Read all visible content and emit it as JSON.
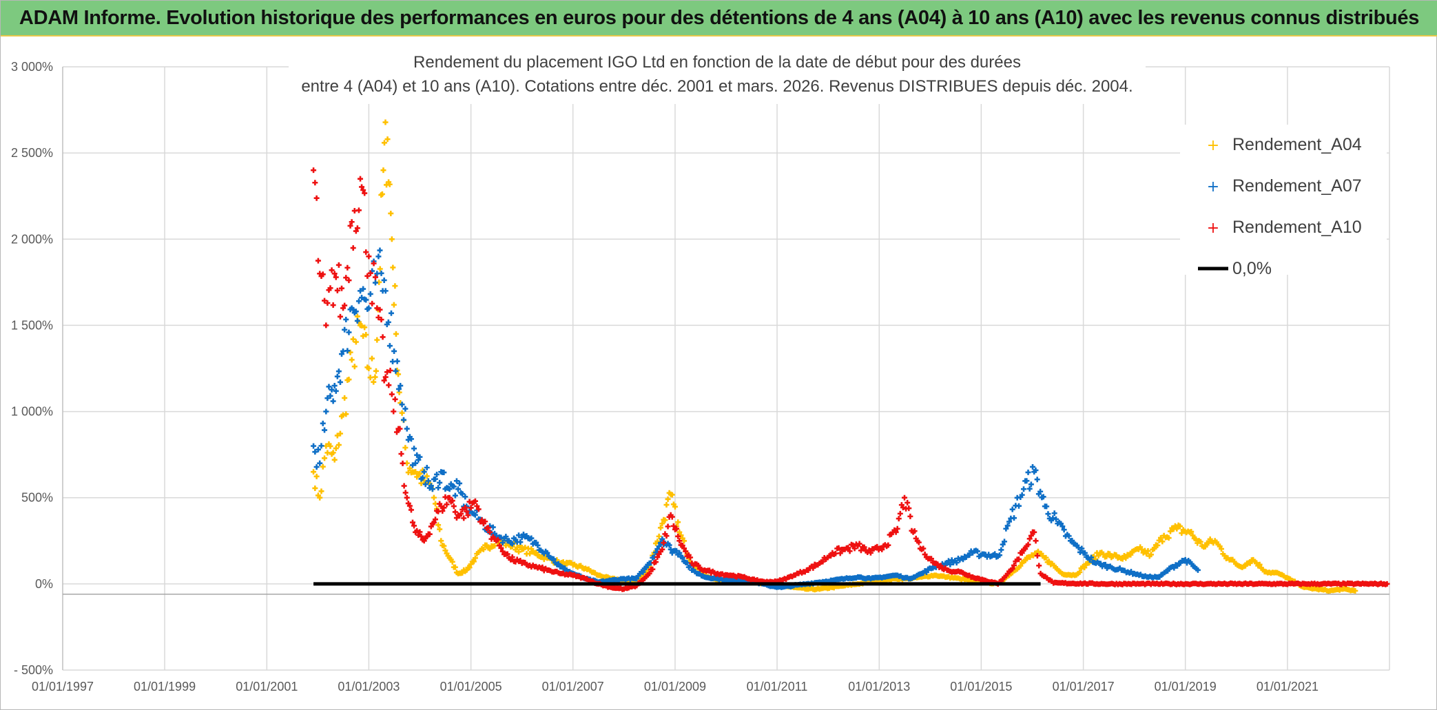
{
  "header": {
    "title": "ADAM Informe. Evolution historique des performances en euros pour des détentions de 4 ans (A04) à 10 ans (A10) avec les revenus connus distribués"
  },
  "chart_data": {
    "type": "scatter",
    "title_lines": [
      "Rendement du placement IGO Ltd  en fonction de la date de début pour des durées",
      "entre 4 (A04) et 10 ans (A10). Cotations entre déc. 2001 et mars. 2026. Revenus DISTRIBUES depuis déc. 2004."
    ],
    "xlabel": "",
    "ylabel": "",
    "x_axis": {
      "min": "1997-01-01",
      "max": "2023-01-01",
      "tick_labels": [
        "01/01/1997",
        "01/01/1999",
        "01/01/2001",
        "01/01/2003",
        "01/01/2005",
        "01/01/2007",
        "01/01/2009",
        "01/01/2011",
        "01/01/2013",
        "01/01/2015",
        "01/01/2017",
        "01/01/2019",
        "01/01/2021"
      ]
    },
    "y_axis": {
      "min": -500,
      "max": 3000,
      "unit": "%",
      "ticks": [
        -500,
        0,
        500,
        1000,
        1500,
        2000,
        2500,
        3000
      ],
      "tick_labels": [
        "- 500%",
        "0%",
        "500%",
        "1 000%",
        "1 500%",
        "2 000%",
        "2 500%",
        "3 000%"
      ]
    },
    "grid": true,
    "legend_position": "top-right",
    "series": [
      {
        "name": "Rendement_A04",
        "color": "#ffc000",
        "marker": "plus",
        "points": [
          [
            "2001-12-01",
            650
          ],
          [
            "2002-01-15",
            500
          ],
          [
            "2002-03-01",
            800
          ],
          [
            "2002-05-01",
            720
          ],
          [
            "2002-07-01",
            980
          ],
          [
            "2002-09-01",
            1300
          ],
          [
            "2002-11-01",
            1500
          ],
          [
            "2003-01-01",
            1250
          ],
          [
            "2003-02-15",
            1200
          ],
          [
            "2003-03-15",
            1750
          ],
          [
            "2003-04-15",
            2400
          ],
          [
            "2003-05-15",
            2580
          ],
          [
            "2003-06-15",
            2000
          ],
          [
            "2003-07-15",
            1450
          ],
          [
            "2003-08-15",
            1050
          ],
          [
            "2003-10-01",
            700
          ],
          [
            "2003-12-01",
            650
          ],
          [
            "2004-02-01",
            600
          ],
          [
            "2004-04-01",
            550
          ],
          [
            "2004-06-01",
            250
          ],
          [
            "2004-08-01",
            150
          ],
          [
            "2004-10-01",
            60
          ],
          [
            "2004-12-01",
            80
          ],
          [
            "2005-02-01",
            150
          ],
          [
            "2005-04-01",
            200
          ],
          [
            "2005-07-01",
            250
          ],
          [
            "2005-10-01",
            230
          ],
          [
            "2006-01-01",
            200
          ],
          [
            "2006-04-01",
            180
          ],
          [
            "2006-07-01",
            150
          ],
          [
            "2006-10-01",
            120
          ],
          [
            "2007-01-01",
            110
          ],
          [
            "2007-04-01",
            90
          ],
          [
            "2007-07-01",
            50
          ],
          [
            "2007-10-01",
            30
          ],
          [
            "2008-01-01",
            20
          ],
          [
            "2008-04-01",
            10
          ],
          [
            "2008-07-01",
            100
          ],
          [
            "2008-10-01",
            350
          ],
          [
            "2008-12-01",
            520
          ],
          [
            "2009-02-01",
            300
          ],
          [
            "2009-05-01",
            120
          ],
          [
            "2009-08-01",
            50
          ],
          [
            "2009-11-01",
            20
          ],
          [
            "2010-02-01",
            30
          ],
          [
            "2010-05-01",
            20
          ],
          [
            "2010-08-01",
            10
          ],
          [
            "2010-11-01",
            0
          ],
          [
            "2011-02-01",
            -10
          ],
          [
            "2011-05-01",
            -20
          ],
          [
            "2011-08-01",
            -30
          ],
          [
            "2011-11-01",
            -30
          ],
          [
            "2012-02-01",
            -20
          ],
          [
            "2012-05-01",
            -10
          ],
          [
            "2012-08-01",
            0
          ],
          [
            "2012-11-01",
            10
          ],
          [
            "2013-02-01",
            20
          ],
          [
            "2013-05-01",
            30
          ],
          [
            "2013-08-01",
            30
          ],
          [
            "2013-11-01",
            40
          ],
          [
            "2014-02-01",
            50
          ],
          [
            "2014-05-01",
            40
          ],
          [
            "2014-08-01",
            30
          ],
          [
            "2014-11-01",
            20
          ],
          [
            "2015-02-01",
            10
          ],
          [
            "2015-05-01",
            0
          ],
          [
            "2015-08-01",
            60
          ],
          [
            "2015-11-01",
            130
          ],
          [
            "2016-02-01",
            180
          ],
          [
            "2016-05-01",
            130
          ],
          [
            "2016-08-01",
            60
          ],
          [
            "2016-11-01",
            50
          ],
          [
            "2017-02-01",
            120
          ],
          [
            "2017-05-01",
            180
          ],
          [
            "2017-08-01",
            160
          ],
          [
            "2017-11-01",
            150
          ],
          [
            "2018-02-01",
            200
          ],
          [
            "2018-05-01",
            170
          ],
          [
            "2018-08-01",
            280
          ],
          [
            "2018-11-01",
            320
          ],
          [
            "2019-02-01",
            300
          ],
          [
            "2019-05-01",
            220
          ],
          [
            "2019-08-01",
            250
          ],
          [
            "2019-11-01",
            150
          ],
          [
            "2020-02-01",
            100
          ],
          [
            "2020-05-01",
            140
          ],
          [
            "2020-08-01",
            70
          ],
          [
            "2020-11-01",
            60
          ],
          [
            "2021-02-01",
            20
          ],
          [
            "2021-05-01",
            -20
          ],
          [
            "2021-08-01",
            -30
          ],
          [
            "2021-11-01",
            -40
          ],
          [
            "2022-02-01",
            -30
          ],
          [
            "2022-05-01",
            -40
          ]
        ]
      },
      {
        "name": "Rendement_A07",
        "color": "#0f6fc6",
        "marker": "plus",
        "points": [
          [
            "2001-12-01",
            800
          ],
          [
            "2002-01-15",
            700
          ],
          [
            "2002-03-01",
            1000
          ],
          [
            "2002-05-01",
            1150
          ],
          [
            "2002-07-01",
            1350
          ],
          [
            "2002-09-01",
            1600
          ],
          [
            "2002-11-01",
            1700
          ],
          [
            "2003-01-01",
            1600
          ],
          [
            "2003-03-01",
            1800
          ],
          [
            "2003-05-01",
            1700
          ],
          [
            "2003-07-01",
            1350
          ],
          [
            "2003-08-15",
            1150
          ],
          [
            "2003-10-01",
            900
          ],
          [
            "2003-12-01",
            700
          ],
          [
            "2004-02-01",
            650
          ],
          [
            "2004-04-01",
            550
          ],
          [
            "2004-06-01",
            650
          ],
          [
            "2004-08-01",
            550
          ],
          [
            "2004-10-01",
            550
          ],
          [
            "2004-12-01",
            450
          ],
          [
            "2005-02-01",
            400
          ],
          [
            "2005-04-01",
            350
          ],
          [
            "2005-07-01",
            280
          ],
          [
            "2005-10-01",
            250
          ],
          [
            "2006-01-01",
            270
          ],
          [
            "2006-04-01",
            240
          ],
          [
            "2006-07-01",
            180
          ],
          [
            "2006-10-01",
            100
          ],
          [
            "2007-01-01",
            60
          ],
          [
            "2007-04-01",
            30
          ],
          [
            "2007-07-01",
            10
          ],
          [
            "2007-10-01",
            20
          ],
          [
            "2008-01-01",
            30
          ],
          [
            "2008-04-01",
            30
          ],
          [
            "2008-07-01",
            120
          ],
          [
            "2008-10-01",
            260
          ],
          [
            "2008-12-01",
            200
          ],
          [
            "2009-02-01",
            180
          ],
          [
            "2009-05-01",
            80
          ],
          [
            "2009-08-01",
            40
          ],
          [
            "2009-11-01",
            30
          ],
          [
            "2010-02-01",
            20
          ],
          [
            "2010-05-01",
            20
          ],
          [
            "2010-08-01",
            10
          ],
          [
            "2010-11-01",
            -10
          ],
          [
            "2011-02-01",
            -20
          ],
          [
            "2011-05-01",
            -10
          ],
          [
            "2011-08-01",
            0
          ],
          [
            "2011-11-01",
            10
          ],
          [
            "2012-02-01",
            20
          ],
          [
            "2012-05-01",
            30
          ],
          [
            "2012-08-01",
            40
          ],
          [
            "2012-11-01",
            30
          ],
          [
            "2013-02-01",
            40
          ],
          [
            "2013-05-01",
            50
          ],
          [
            "2013-08-01",
            30
          ],
          [
            "2013-11-01",
            60
          ],
          [
            "2014-02-01",
            100
          ],
          [
            "2014-05-01",
            120
          ],
          [
            "2014-08-01",
            140
          ],
          [
            "2014-11-01",
            180
          ],
          [
            "2015-02-01",
            170
          ],
          [
            "2015-05-01",
            160
          ],
          [
            "2015-08-01",
            380
          ],
          [
            "2015-11-01",
            550
          ],
          [
            "2016-01-15",
            650
          ],
          [
            "2016-04-01",
            450
          ],
          [
            "2016-07-01",
            350
          ],
          [
            "2016-10-01",
            250
          ],
          [
            "2017-01-01",
            180
          ],
          [
            "2017-04-01",
            120
          ],
          [
            "2017-07-01",
            100
          ],
          [
            "2017-10-01",
            80
          ],
          [
            "2018-01-01",
            60
          ],
          [
            "2018-04-01",
            40
          ],
          [
            "2018-07-01",
            40
          ],
          [
            "2018-10-01",
            100
          ],
          [
            "2019-01-01",
            140
          ],
          [
            "2019-04-01",
            80
          ]
        ]
      },
      {
        "name": "Rendement_A10",
        "color": "#ee1111",
        "marker": "plus",
        "points": [
          [
            "2001-12-01",
            2400
          ],
          [
            "2002-01-15",
            1800
          ],
          [
            "2002-03-01",
            1500
          ],
          [
            "2002-05-01",
            1800
          ],
          [
            "2002-07-01",
            1600
          ],
          [
            "2002-09-01",
            2100
          ],
          [
            "2002-11-01",
            2350
          ],
          [
            "2003-01-01",
            1900
          ],
          [
            "2003-03-01",
            1600
          ],
          [
            "2003-05-01",
            1200
          ],
          [
            "2003-06-15",
            1100
          ],
          [
            "2003-08-01",
            900
          ],
          [
            "2003-10-01",
            500
          ],
          [
            "2003-12-01",
            300
          ],
          [
            "2004-02-01",
            250
          ],
          [
            "2004-04-01",
            350
          ],
          [
            "2004-06-01",
            450
          ],
          [
            "2004-08-01",
            500
          ],
          [
            "2004-10-01",
            400
          ],
          [
            "2004-12-01",
            420
          ],
          [
            "2005-02-01",
            480
          ],
          [
            "2005-04-01",
            350
          ],
          [
            "2005-07-01",
            250
          ],
          [
            "2005-10-01",
            150
          ],
          [
            "2006-01-01",
            120
          ],
          [
            "2006-04-01",
            100
          ],
          [
            "2006-07-01",
            80
          ],
          [
            "2006-10-01",
            60
          ],
          [
            "2007-01-01",
            50
          ],
          [
            "2007-04-01",
            30
          ],
          [
            "2007-07-01",
            0
          ],
          [
            "2007-10-01",
            -20
          ],
          [
            "2008-01-01",
            -30
          ],
          [
            "2008-04-01",
            -10
          ],
          [
            "2008-07-01",
            60
          ],
          [
            "2008-10-01",
            200
          ],
          [
            "2008-12-01",
            400
          ],
          [
            "2009-02-01",
            250
          ],
          [
            "2009-05-01",
            120
          ],
          [
            "2009-08-01",
            80
          ],
          [
            "2009-11-01",
            60
          ],
          [
            "2010-02-01",
            50
          ],
          [
            "2010-05-01",
            40
          ],
          [
            "2010-08-01",
            20
          ],
          [
            "2010-11-01",
            10
          ],
          [
            "2011-02-01",
            20
          ],
          [
            "2011-05-01",
            50
          ],
          [
            "2011-08-01",
            80
          ],
          [
            "2011-11-01",
            120
          ],
          [
            "2012-02-01",
            180
          ],
          [
            "2012-05-01",
            200
          ],
          [
            "2012-08-01",
            220
          ],
          [
            "2012-11-01",
            180
          ],
          [
            "2013-02-01",
            220
          ],
          [
            "2013-05-01",
            300
          ],
          [
            "2013-07-01",
            500
          ],
          [
            "2013-09-01",
            300
          ],
          [
            "2013-11-01",
            200
          ],
          [
            "2014-02-01",
            120
          ],
          [
            "2014-05-01",
            80
          ],
          [
            "2014-08-01",
            70
          ],
          [
            "2014-11-01",
            40
          ],
          [
            "2015-02-01",
            20
          ],
          [
            "2015-05-01",
            0
          ],
          [
            "2015-08-01",
            80
          ],
          [
            "2015-11-01",
            200
          ],
          [
            "2016-01-15",
            300
          ],
          [
            "2016-03-01",
            60
          ],
          [
            "2016-06-01",
            5
          ],
          [
            "2017-06-01",
            0
          ],
          [
            "2018-06-01",
            0
          ],
          [
            "2019-06-01",
            0
          ],
          [
            "2020-06-01",
            0
          ],
          [
            "2021-06-01",
            0
          ],
          [
            "2022-06-01",
            0
          ],
          [
            "2022-12-15",
            0
          ]
        ]
      },
      {
        "name": "0,0%",
        "color": "#000000",
        "marker": "line",
        "points": [
          [
            "2001-12-01",
            0
          ],
          [
            "2016-03-01",
            0
          ]
        ]
      }
    ]
  }
}
